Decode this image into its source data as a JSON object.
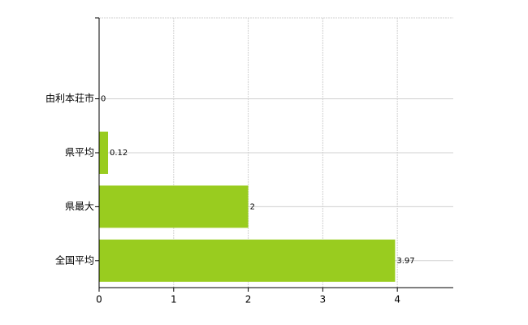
{
  "chart_data": {
    "type": "bar",
    "orientation": "horizontal",
    "categories": [
      null,
      "由利本荘市",
      "県平均",
      "県最大",
      "全国平均"
    ],
    "values": [
      null,
      0,
      0.12,
      2,
      3.97
    ],
    "color": "#99cc1f",
    "xlim": [
      0,
      4.75
    ],
    "xticks": [
      0,
      1,
      2,
      3,
      4
    ],
    "grid": true
  }
}
